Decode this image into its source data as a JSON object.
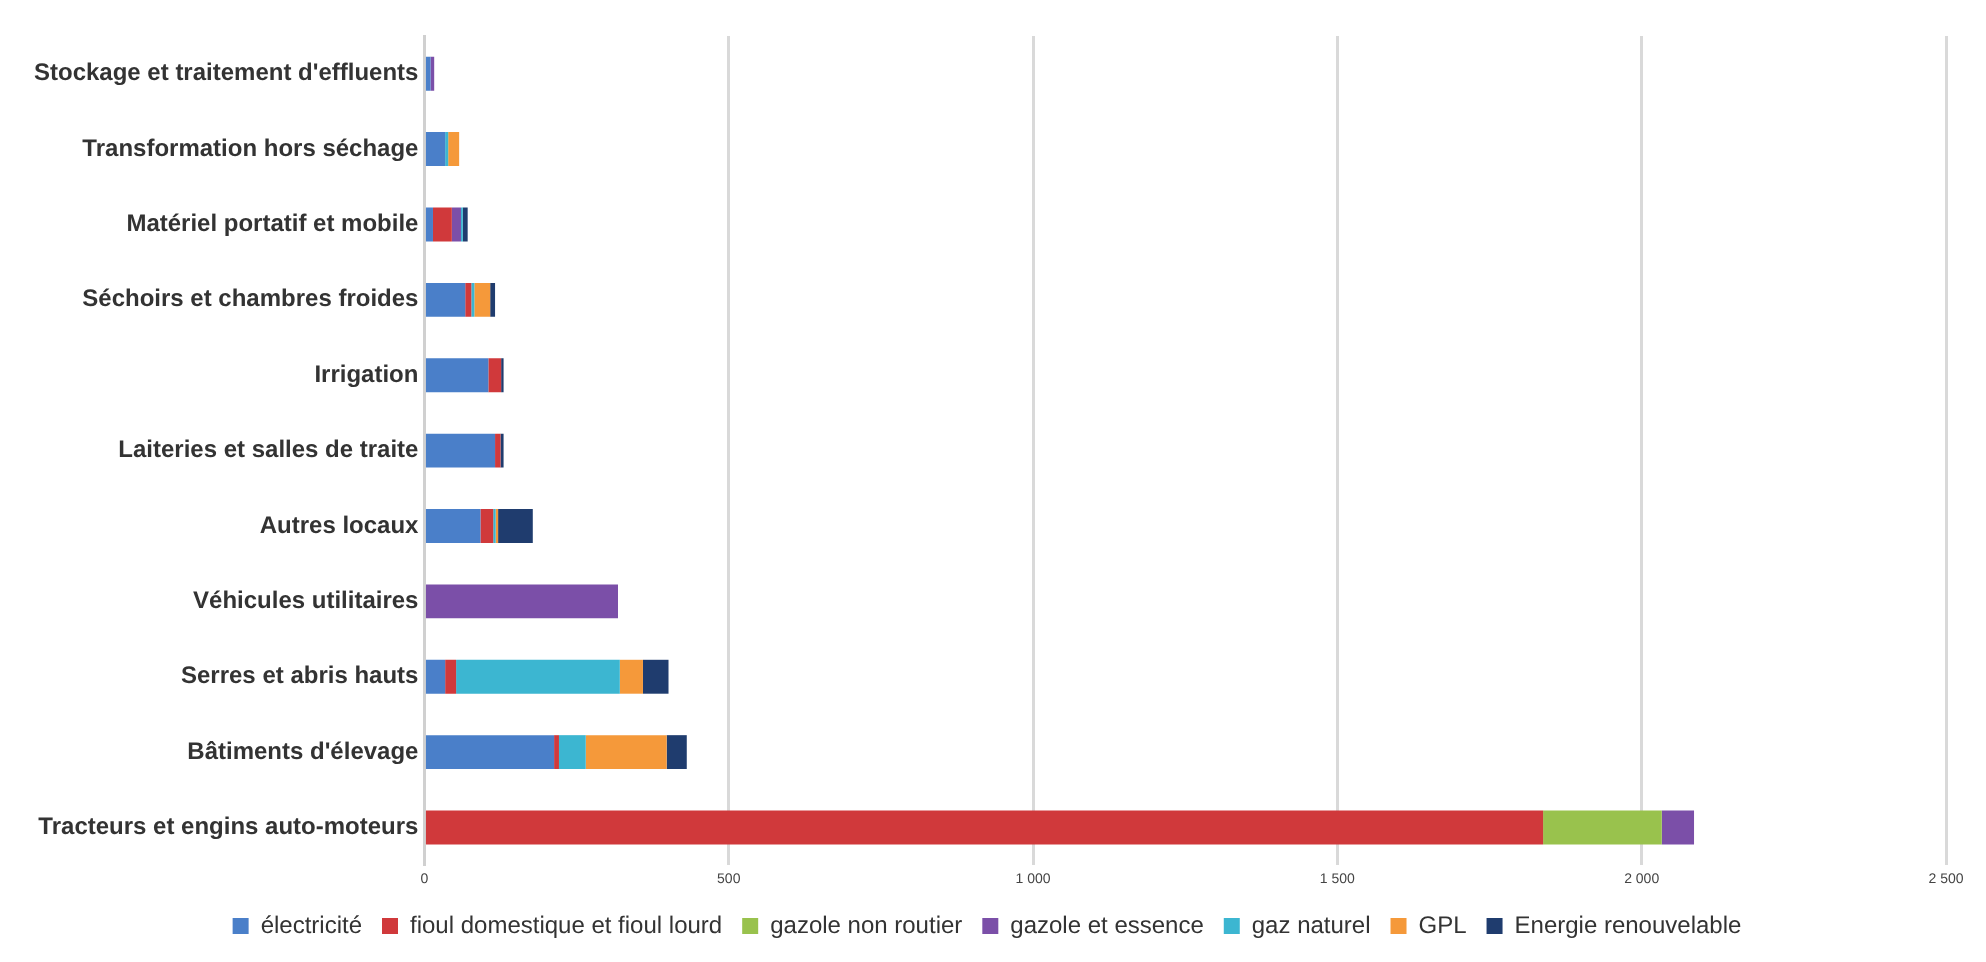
{
  "chart_data": {
    "type": "bar",
    "orientation": "horizontal",
    "stacked": true,
    "grid": "x",
    "legend": "bottom",
    "categories": [
      "Stockage et traitement d'effluents",
      "Transformation hors séchage",
      "Matériel portatif et mobile",
      "Séchoirs et chambres froides",
      "Irrigation",
      "Laiteries et salles de traite",
      "Autres locaux",
      "Véhicules utilitaires",
      "Serres et abris hauts",
      "Bâtiments d'élevage",
      "Tracteurs et engins auto-moteurs"
    ],
    "xlim": [
      0,
      2500
    ],
    "xticks": [
      0,
      500,
      {
        "value": 1000,
        "label": "1 000"
      },
      {
        "value": 1500,
        "label": "1 500"
      },
      {
        "value": 2000,
        "label": "2 000"
      },
      {
        "value": 2500,
        "label": "2 500"
      }
    ],
    "series": [
      {
        "name": "électricité",
        "color": "#4a7fc9",
        "values": [
          10,
          34,
          14,
          67,
          105,
          116,
          92,
          null,
          34,
          213,
          null
        ]
      },
      {
        "name": "fioul domestique et fioul lourd",
        "color": "#d0393b",
        "values": [
          null,
          null,
          31,
          10,
          21,
          9,
          21,
          null,
          18,
          8,
          1838
        ]
      },
      {
        "name": "gazole non routier",
        "color": "#99c24d",
        "values": [
          null,
          null,
          null,
          null,
          null,
          null,
          null,
          null,
          null,
          null,
          195
        ]
      },
      {
        "name": "gazole et essence",
        "color": "#7b4fa8",
        "values": [
          6,
          null,
          15,
          null,
          null,
          null,
          null,
          318,
          null,
          null,
          53
        ]
      },
      {
        "name": "gaz naturel",
        "color": "#3cb6d1",
        "values": [
          null,
          5,
          3,
          5,
          null,
          null,
          4,
          null,
          269,
          44,
          null
        ]
      },
      {
        "name": "GPL",
        "color": "#f5993a",
        "values": [
          null,
          18,
          null,
          26,
          null,
          null,
          4,
          null,
          38,
          133,
          null
        ]
      },
      {
        "name": "Energie renouvelable",
        "color": "#1f3c6e",
        "values": [
          null,
          null,
          8,
          8,
          4,
          5,
          57,
          null,
          42,
          33,
          null
        ]
      }
    ]
  }
}
